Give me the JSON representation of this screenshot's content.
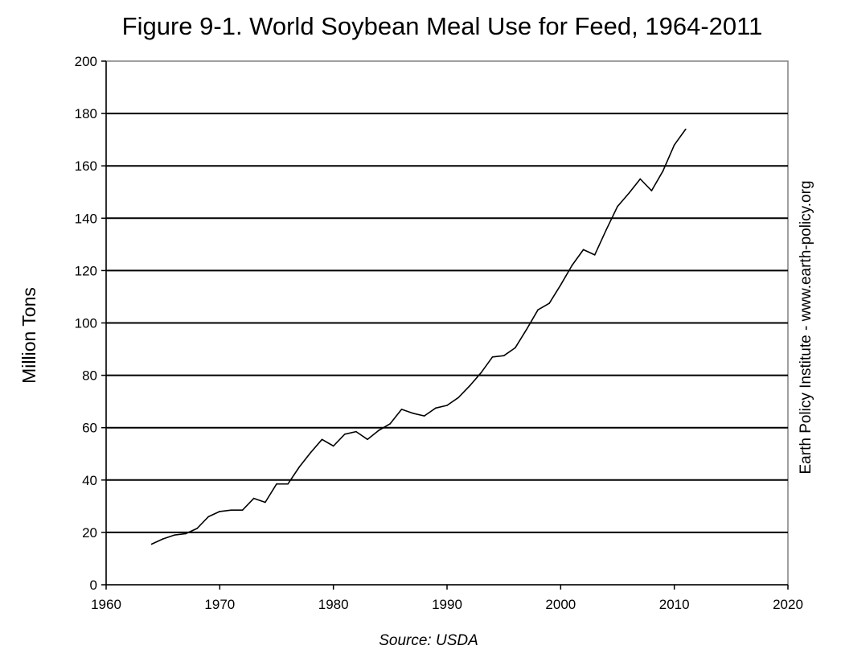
{
  "chart_data": {
    "type": "line",
    "title": "Figure 9-1. World Soybean Meal Use for Feed, 1964-2011",
    "xlabel": "",
    "ylabel": "Million Tons",
    "source": "Source: USDA",
    "side_note": "Earth Policy Institute - www.earth-policy.org",
    "xlim": [
      1960,
      2020
    ],
    "ylim": [
      0,
      200
    ],
    "x_ticks": [
      1960,
      1970,
      1980,
      1990,
      2000,
      2010,
      2020
    ],
    "y_ticks": [
      0,
      20,
      40,
      60,
      80,
      100,
      120,
      140,
      160,
      180,
      200
    ],
    "grid": "horizontal",
    "line_color": "#000000",
    "series": [
      {
        "x": [
          1964,
          1965,
          1966,
          1967,
          1968,
          1969,
          1970,
          1971,
          1972,
          1973,
          1974,
          1975,
          1976,
          1977,
          1978,
          1979,
          1980,
          1981,
          1982,
          1983,
          1984,
          1985,
          1986,
          1987,
          1988,
          1989,
          1990,
          1991,
          1992,
          1993,
          1994,
          1995,
          1996,
          1997,
          1998,
          1999,
          2000,
          2001,
          2002,
          2003,
          2004,
          2005,
          2006,
          2007,
          2008,
          2009,
          2010,
          2011
        ],
        "values": [
          15.5,
          17.5,
          19,
          19.5,
          21.5,
          26,
          28,
          28.5,
          28.5,
          33,
          31.5,
          38.5,
          38.5,
          45,
          50.5,
          55.5,
          53,
          57.5,
          58.5,
          55.5,
          59,
          61.5,
          67,
          65.5,
          64.5,
          67.5,
          68.5,
          71.5,
          76,
          81,
          87,
          87.5,
          90.5,
          97.5,
          105,
          107.5,
          114.5,
          122,
          128,
          126,
          135.5,
          144.5,
          149.5,
          155,
          150.5,
          158,
          168,
          174
        ]
      }
    ]
  }
}
